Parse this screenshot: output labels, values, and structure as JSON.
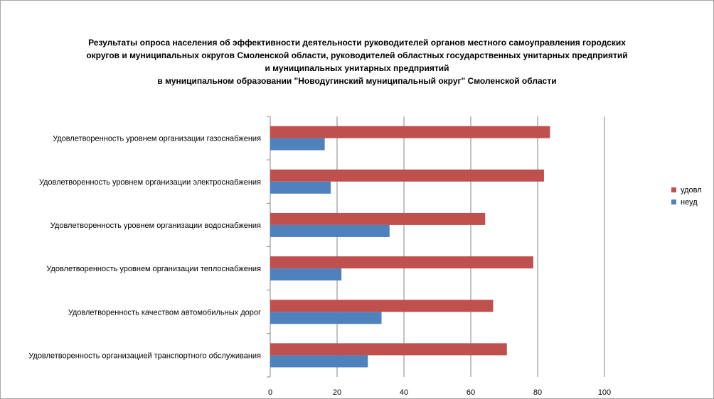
{
  "chart_data": {
    "type": "bar",
    "orientation": "horizontal",
    "title_lines": [
      "Результаты опроса населения об эффективности деятельности руководителей органов местного самоуправления городских",
      "округов и муниципальных округов Смоленской области, руководителей областных государственных унитарных предприятий",
      "и муниципальных унитарных предприятий",
      "в муниципальном образовании \"Новодугинский муниципальный округ\" Смоленской области"
    ],
    "categories": [
      "Удовлетворенность уровнем организации газоснабжения",
      "Удовлетворенность уровнем организации электроснабжения",
      "Удовлетворенность уровнем организации водоснабжения",
      "Удовлетворенность уровнем организации теплоснабжения",
      "Удовлетворенность качеством автомобильных дорог",
      "Удовлетворенность организацией транспортного обслуживания"
    ],
    "series": [
      {
        "name": "удовл",
        "color": "#c0504d",
        "values": [
          83.7,
          81.9,
          64.3,
          78.7,
          66.7,
          70.8
        ]
      },
      {
        "name": "неуд",
        "color": "#4f81bd",
        "values": [
          16.3,
          18.1,
          35.7,
          21.3,
          33.3,
          29.2
        ]
      }
    ],
    "xlim": [
      0,
      100
    ],
    "xticks": [
      "0",
      "20",
      "40",
      "60",
      "80",
      "100"
    ],
    "grid": true,
    "legend_position": "right"
  }
}
